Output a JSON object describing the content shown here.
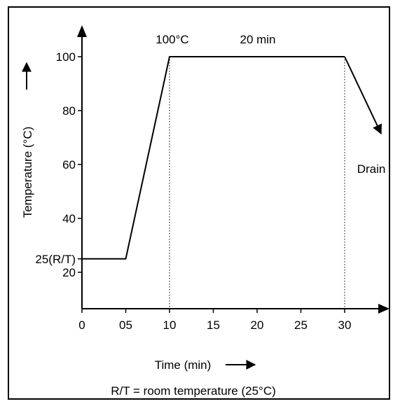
{
  "chart_data": {
    "type": "line",
    "xlabel": "Time (min)",
    "ylabel": "Temperature (°C)",
    "x_ticks": [
      "0",
      "05",
      "10",
      "15",
      "20",
      "25",
      "30"
    ],
    "y_ticks": [
      "20",
      "40",
      "60",
      "80",
      "100"
    ],
    "y_marker_label": "25(R/T)",
    "xlim": [
      0,
      35
    ],
    "ylim": [
      6,
      115
    ],
    "grid": false,
    "series": [
      {
        "x": [
          0,
          5,
          10,
          30
        ],
        "y": [
          25,
          25,
          100,
          100
        ]
      }
    ],
    "drain_segment": {
      "x": [
        30,
        34
      ],
      "y": [
        100,
        72
      ]
    },
    "guides_x": [
      10,
      30
    ],
    "annotations": {
      "temp_label": "100°C",
      "duration_label": "20 min",
      "drain_label": "Drain"
    },
    "footnote": "R/T = room temperature (25°C)"
  }
}
